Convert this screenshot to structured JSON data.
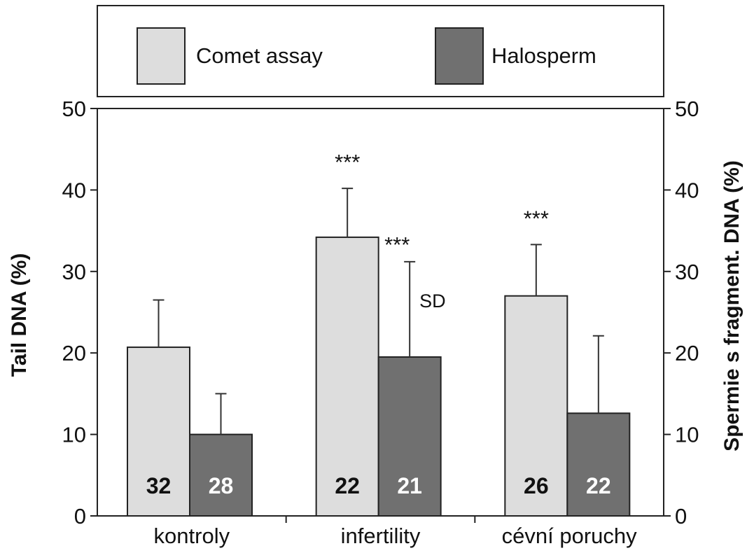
{
  "chart_data": {
    "type": "bar",
    "categories": [
      "kontroly",
      "infertility",
      "cévní poruchy"
    ],
    "series": [
      {
        "name": "Comet assay",
        "color": "#dddddd",
        "values": [
          20.7,
          34.2,
          27.0
        ],
        "errors": [
          5.8,
          6.0,
          6.3
        ],
        "counts": [
          "32",
          "22",
          "26"
        ],
        "significance": [
          "",
          "***",
          "***"
        ]
      },
      {
        "name": "Halosperm",
        "color": "#707070",
        "values": [
          10.0,
          19.5,
          12.6
        ],
        "errors": [
          5.0,
          11.7,
          9.5
        ],
        "counts": [
          "28",
          "21",
          "22"
        ],
        "significance": [
          "",
          "***",
          ""
        ]
      }
    ],
    "ylabel_left": "Tail DNA (%)",
    "ylabel_right": "Spermie s fragment. DNA (%)",
    "ylim": [
      0,
      50
    ],
    "yticks": [
      "0",
      "10",
      "20",
      "30",
      "40",
      "50"
    ],
    "annotation": "SD",
    "legend_position": "top"
  }
}
